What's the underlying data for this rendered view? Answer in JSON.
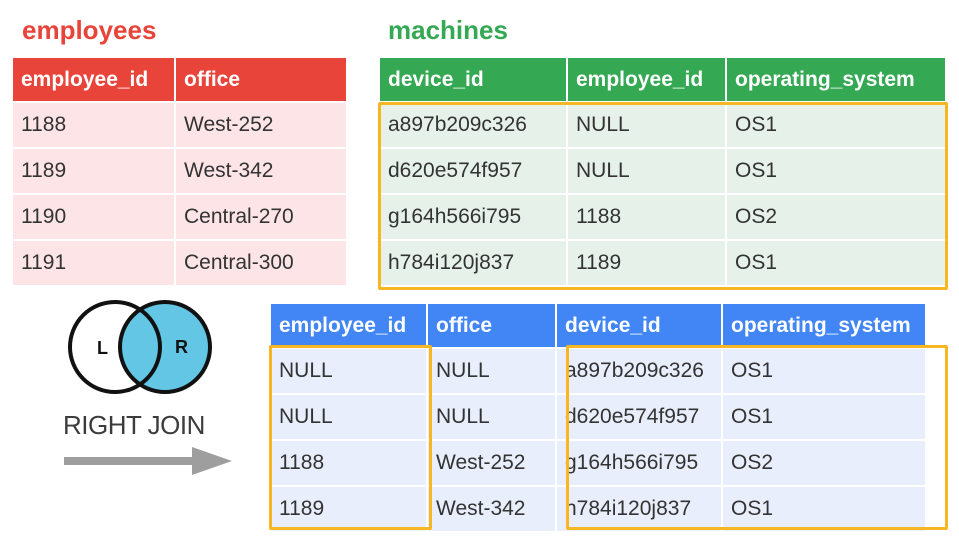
{
  "employees": {
    "title": "employees",
    "columns": [
      "employee_id",
      "office"
    ],
    "rows": [
      [
        "1188",
        "West-252"
      ],
      [
        "1189",
        "West-342"
      ],
      [
        "1190",
        "Central-270"
      ],
      [
        "1191",
        "Central-300"
      ]
    ]
  },
  "machines": {
    "title": "machines",
    "columns": [
      "device_id",
      "employee_id",
      "operating_system"
    ],
    "rows": [
      [
        "a897b209c326",
        "NULL",
        "OS1"
      ],
      [
        "d620e574f957",
        "NULL",
        "OS1"
      ],
      [
        "g164h566i795",
        "1188",
        "OS2"
      ],
      [
        "h784i120j837",
        "1189",
        "OS1"
      ]
    ]
  },
  "result": {
    "columns": [
      "employee_id",
      "office",
      "device_id",
      "operating_system"
    ],
    "rows": [
      [
        "NULL",
        "NULL",
        "a897b209c326",
        "OS1"
      ],
      [
        "NULL",
        "NULL",
        "d620e574f957",
        "OS1"
      ],
      [
        "1188",
        "West-252",
        "g164h566i795",
        "OS2"
      ],
      [
        "1189",
        "West-342",
        "h784i120j837",
        "OS1"
      ]
    ]
  },
  "venn": {
    "left_label": "L",
    "right_label": "R"
  },
  "join_label": "RIGHT JOIN",
  "colors": {
    "employees": "#e8443a",
    "machines": "#34a853",
    "result": "#4285f4",
    "highlight": "#f6b722",
    "venn_fill": "#62c6e4"
  }
}
